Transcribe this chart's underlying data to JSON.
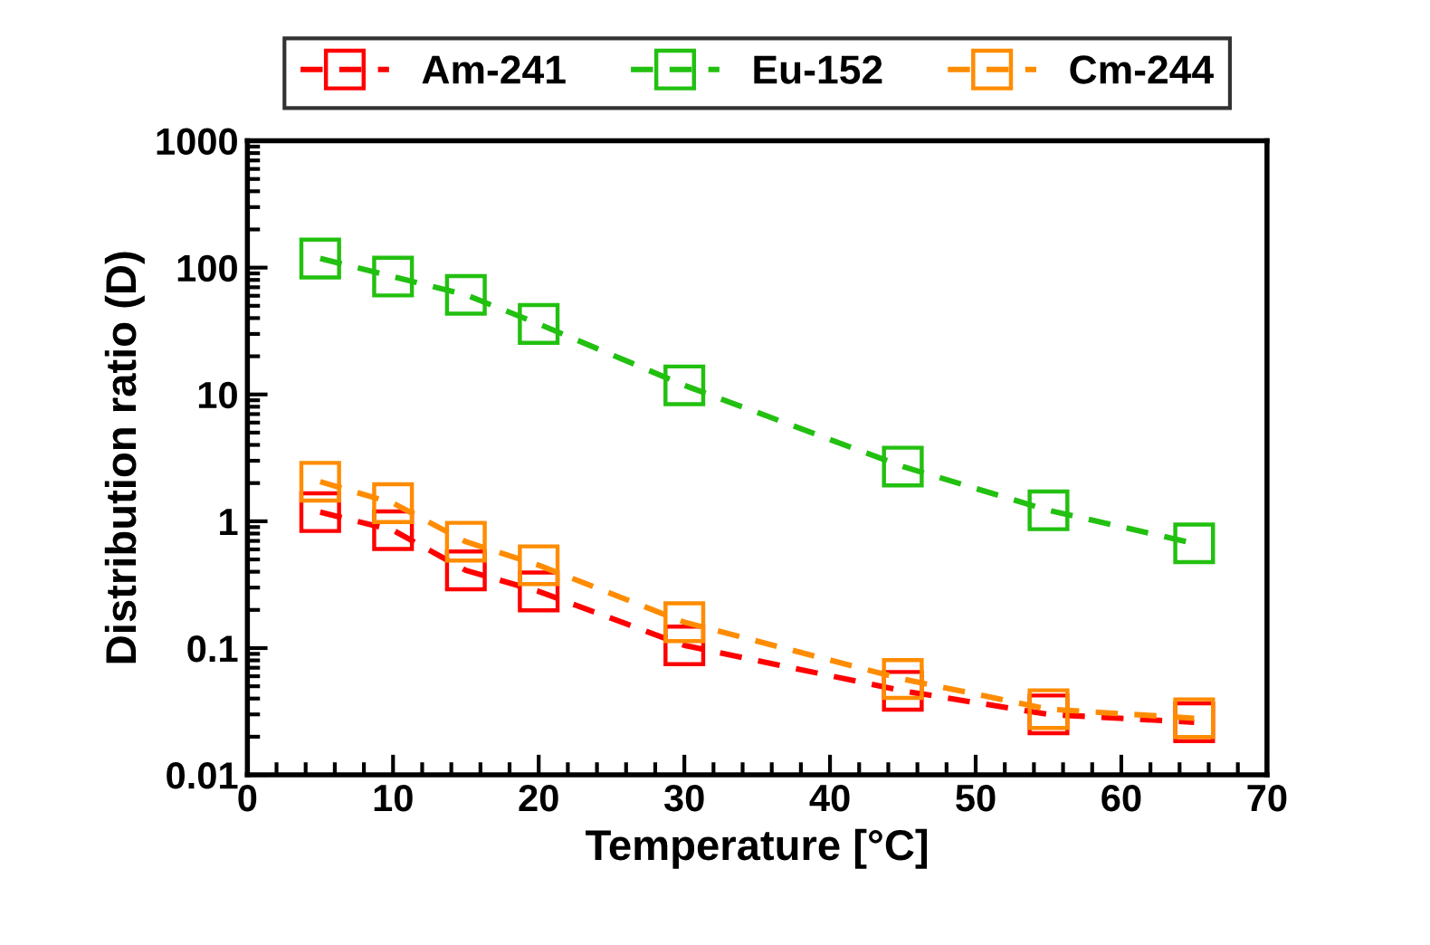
{
  "chart_data": {
    "type": "line",
    "xlabel": "Temperature [°C]",
    "ylabel": "Distribution ratio (D)",
    "log": "y",
    "x": [
      5,
      10,
      15,
      20,
      30,
      45,
      55,
      65
    ],
    "series": [
      {
        "name": "Am-241",
        "color": "#ff0000",
        "values": [
          1.18,
          0.85,
          0.41,
          0.28,
          0.105,
          0.046,
          0.03,
          0.026
        ]
      },
      {
        "name": "Eu-152",
        "color": "#22c010",
        "values": [
          118,
          85,
          61,
          36,
          11.8,
          2.7,
          1.22,
          0.67
        ]
      },
      {
        "name": "Cm-244",
        "color": "#ff8c00",
        "values": [
          2.05,
          1.39,
          0.69,
          0.45,
          0.16,
          0.057,
          0.033,
          0.028
        ]
      }
    ],
    "xlim": [
      0,
      70
    ],
    "xticks": [
      0,
      10,
      20,
      30,
      40,
      50,
      60,
      70
    ],
    "ylim": [
      0.01,
      1000
    ],
    "yticks": [
      {
        "value": 0.01,
        "label": "0.01"
      },
      {
        "value": 0.1,
        "label": "0.1"
      },
      {
        "value": 1,
        "label": "1"
      },
      {
        "value": 10,
        "label": "10"
      },
      {
        "value": 100,
        "label": "100"
      },
      {
        "value": 1000,
        "label": "1000"
      }
    ],
    "grid": false,
    "legend": "top",
    "marker": "square",
    "line_style": "dashed"
  }
}
